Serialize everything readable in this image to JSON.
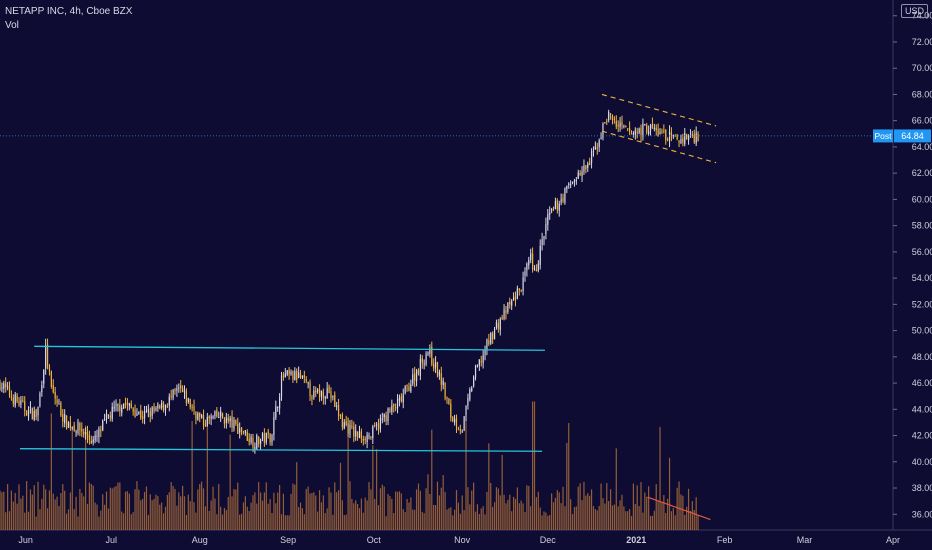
{
  "header": {
    "title": "NETAPP INC, 4h, Cboe BZX",
    "volume_label": "Vol",
    "currency": "USD"
  },
  "price_tag": {
    "label": "Post",
    "value": "64.84"
  },
  "colors": {
    "background": "#0f0c33",
    "up_candle": "#d8d8e6",
    "down_candle": "#f0b43c",
    "volume_bar": "#c0793a",
    "trend_line": "#26c6da",
    "channel_line": "#f0b43c",
    "volume_trend": "#e0593d",
    "price_tag_bg": "#2196f3"
  },
  "chart_data": {
    "type": "candlestick",
    "symbol": "NETAPP INC",
    "interval": "4h",
    "exchange": "Cboe BZX",
    "y_ticks": [
      "36.00",
      "38.00",
      "40.00",
      "42.00",
      "44.00",
      "46.00",
      "48.00",
      "50.00",
      "52.00",
      "54.00",
      "56.00",
      "58.00",
      "60.00",
      "62.00",
      "64.00",
      "66.00",
      "68.00",
      "70.00",
      "72.00",
      "74.00"
    ],
    "ylim": [
      34.8,
      75.2
    ],
    "x_ticks": [
      "Jun",
      "Jul",
      "Aug",
      "Sep",
      "Oct",
      "Nov",
      "Dec",
      "2021",
      "Feb",
      "Mar",
      "Apr"
    ],
    "x_tick_dates": [
      "2020-06-01",
      "2020-07-01",
      "2020-08-01",
      "2020-09-01",
      "2020-10-01",
      "2020-11-01",
      "2020-12-01",
      "2021-01-01",
      "2021-02-01",
      "2021-03-01",
      "2021-04-01"
    ],
    "xlim": [
      "2020-05-23",
      "2021-04-01"
    ],
    "last_price": 64.84,
    "close_series": {
      "x": [
        "2020-05-23",
        "2020-05-27",
        "2020-06-01",
        "2020-06-05",
        "2020-06-08",
        "2020-06-10",
        "2020-06-15",
        "2020-06-20",
        "2020-06-25",
        "2020-06-30",
        "2020-07-05",
        "2020-07-12",
        "2020-07-18",
        "2020-07-25",
        "2020-08-02",
        "2020-08-08",
        "2020-08-15",
        "2020-08-20",
        "2020-08-26",
        "2020-08-30",
        "2020-09-05",
        "2020-09-10",
        "2020-09-15",
        "2020-09-20",
        "2020-09-25",
        "2020-09-30",
        "2020-10-05",
        "2020-10-10",
        "2020-10-15",
        "2020-10-20",
        "2020-10-25",
        "2020-10-28",
        "2020-11-01",
        "2020-11-05",
        "2020-11-08",
        "2020-11-12",
        "2020-11-18",
        "2020-11-22",
        "2020-11-25",
        "2020-11-26",
        "2020-12-01",
        "2020-12-10",
        "2020-12-15",
        "2020-12-18",
        "2020-12-22",
        "2020-12-26",
        "2020-12-30",
        "2021-01-05",
        "2021-01-10",
        "2021-01-15",
        "2021-01-20",
        "2021-01-23"
      ],
      "y": [
        46.0,
        45.0,
        44.0,
        43.5,
        48.5,
        45.5,
        43.0,
        42.5,
        41.5,
        43.5,
        44.5,
        43.5,
        44.0,
        45.5,
        43.0,
        43.5,
        42.5,
        41.5,
        42.0,
        46.5,
        46.5,
        45.0,
        45.5,
        43.0,
        42.0,
        42.0,
        43.5,
        44.5,
        46.5,
        48.5,
        46.0,
        43.5,
        42.5,
        46.5,
        48.0,
        50.0,
        52.0,
        53.5,
        55.5,
        54.0,
        58.5,
        61.5,
        62.5,
        64.0,
        66.5,
        65.5,
        65.0,
        65.5,
        65.0,
        64.5,
        64.84,
        64.84
      ]
    },
    "candle_rules": {
      "spacing_days": 0.6667,
      "seed": 7,
      "up_ratio_approx": 0.5
    },
    "volume": {
      "max_spike_date": "2020-11-26",
      "typical_fraction": 0.18
    },
    "annotations": [
      {
        "type": "trend_line",
        "color": "trend_line",
        "from": [
          "2020-06-04",
          48.8
        ],
        "to": [
          "2020-11-30",
          48.5
        ]
      },
      {
        "type": "trend_line",
        "color": "trend_line",
        "from": [
          "2020-05-30",
          41.0
        ],
        "to": [
          "2020-11-29",
          40.8
        ]
      },
      {
        "type": "dashed_line",
        "color": "channel_line",
        "from": [
          "2020-12-20",
          68.0
        ],
        "to": [
          "2021-01-29",
          65.6
        ]
      },
      {
        "type": "dashed_line",
        "color": "channel_line",
        "from": [
          "2020-12-20",
          65.2
        ],
        "to": [
          "2021-01-29",
          62.8
        ]
      },
      {
        "type": "volume_trend",
        "color": "volume_trend",
        "from": "2021-01-05",
        "to": "2021-01-27"
      }
    ]
  }
}
